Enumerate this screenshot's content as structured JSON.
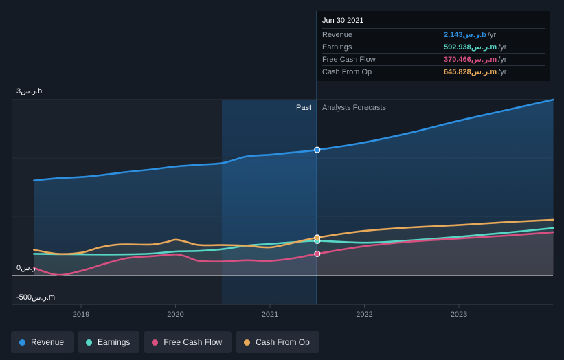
{
  "chart_data": {
    "type": "line",
    "ylabel_top": "3ر.س.b",
    "ylabel_zero": "0ر.س",
    "ylabel_bottom": "-500ر.س.m",
    "ylim": [
      -500,
      3000
    ],
    "x_ticks": [
      "2019",
      "2020",
      "2021",
      "2022",
      "2023"
    ],
    "past_label": "Past",
    "forecast_label": "Analysts Forecasts",
    "series": [
      {
        "name": "Revenue",
        "color": "#2d8fe0",
        "points": [
          [
            2018.5,
            1620
          ],
          [
            2018.75,
            1660
          ],
          [
            2019.0,
            1680
          ],
          [
            2019.25,
            1720
          ],
          [
            2019.5,
            1770
          ],
          [
            2019.75,
            1810
          ],
          [
            2020.0,
            1860
          ],
          [
            2020.25,
            1890
          ],
          [
            2020.5,
            1920
          ],
          [
            2020.75,
            2030
          ],
          [
            2021.0,
            2060
          ],
          [
            2021.25,
            2100
          ],
          [
            2021.5,
            2143
          ],
          [
            2022.0,
            2270
          ],
          [
            2022.5,
            2440
          ],
          [
            2023.0,
            2640
          ],
          [
            2023.5,
            2820
          ],
          [
            2024.0,
            3000
          ]
        ]
      },
      {
        "name": "Earnings",
        "color": "#58d6c5",
        "points": [
          [
            2018.5,
            370
          ],
          [
            2018.75,
            365
          ],
          [
            2019.0,
            362
          ],
          [
            2019.25,
            360
          ],
          [
            2019.5,
            362
          ],
          [
            2019.75,
            375
          ],
          [
            2020.0,
            410
          ],
          [
            2020.25,
            420
          ],
          [
            2020.5,
            450
          ],
          [
            2020.75,
            510
          ],
          [
            2021.0,
            540
          ],
          [
            2021.25,
            570
          ],
          [
            2021.5,
            592.938
          ],
          [
            2022.0,
            560
          ],
          [
            2022.5,
            600
          ],
          [
            2023.0,
            660
          ],
          [
            2023.5,
            730
          ],
          [
            2024.0,
            810
          ]
        ]
      },
      {
        "name": "Free Cash Flow",
        "color": "#d8507f",
        "points": [
          [
            2018.5,
            130
          ],
          [
            2018.75,
            10
          ],
          [
            2019.0,
            80
          ],
          [
            2019.25,
            200
          ],
          [
            2019.5,
            300
          ],
          [
            2019.75,
            330
          ],
          [
            2020.0,
            360
          ],
          [
            2020.1,
            330
          ],
          [
            2020.25,
            250
          ],
          [
            2020.5,
            240
          ],
          [
            2020.75,
            260
          ],
          [
            2021.0,
            250
          ],
          [
            2021.25,
            295
          ],
          [
            2021.5,
            370.466
          ],
          [
            2022.0,
            500
          ],
          [
            2022.5,
            580
          ],
          [
            2023.0,
            630
          ],
          [
            2023.5,
            680
          ],
          [
            2024.0,
            740
          ]
        ]
      },
      {
        "name": "Cash From Op",
        "color": "#e8a85a",
        "points": [
          [
            2018.5,
            440
          ],
          [
            2018.75,
            370
          ],
          [
            2019.0,
            390
          ],
          [
            2019.2,
            480
          ],
          [
            2019.4,
            530
          ],
          [
            2019.75,
            530
          ],
          [
            2019.9,
            570
          ],
          [
            2020.0,
            610
          ],
          [
            2020.1,
            580
          ],
          [
            2020.25,
            520
          ],
          [
            2020.5,
            520
          ],
          [
            2020.75,
            510
          ],
          [
            2021.0,
            480
          ],
          [
            2021.25,
            560
          ],
          [
            2021.5,
            645.828
          ],
          [
            2022.0,
            760
          ],
          [
            2022.5,
            820
          ],
          [
            2023.0,
            860
          ],
          [
            2023.5,
            910
          ],
          [
            2024.0,
            950
          ]
        ]
      }
    ]
  },
  "tooltip": {
    "date": "Jun 30 2021",
    "rows": [
      {
        "label": "Revenue",
        "value": "2.143ر.س.b",
        "unit": "/yr",
        "color": "#2d8fe0"
      },
      {
        "label": "Earnings",
        "value": "592.938ر.س.m",
        "unit": "/yr",
        "color": "#58d6c5"
      },
      {
        "label": "Free Cash Flow",
        "value": "370.466ر.س.m",
        "unit": "/yr",
        "color": "#d8507f"
      },
      {
        "label": "Cash From Op",
        "value": "645.828ر.س.m",
        "unit": "/yr",
        "color": "#e8a85a"
      }
    ]
  },
  "legend": [
    {
      "label": "Revenue",
      "color": "#2d8fe0"
    },
    {
      "label": "Earnings",
      "color": "#58d6c5"
    },
    {
      "label": "Free Cash Flow",
      "color": "#d8507f"
    },
    {
      "label": "Cash From Op",
      "color": "#e8a85a"
    }
  ]
}
